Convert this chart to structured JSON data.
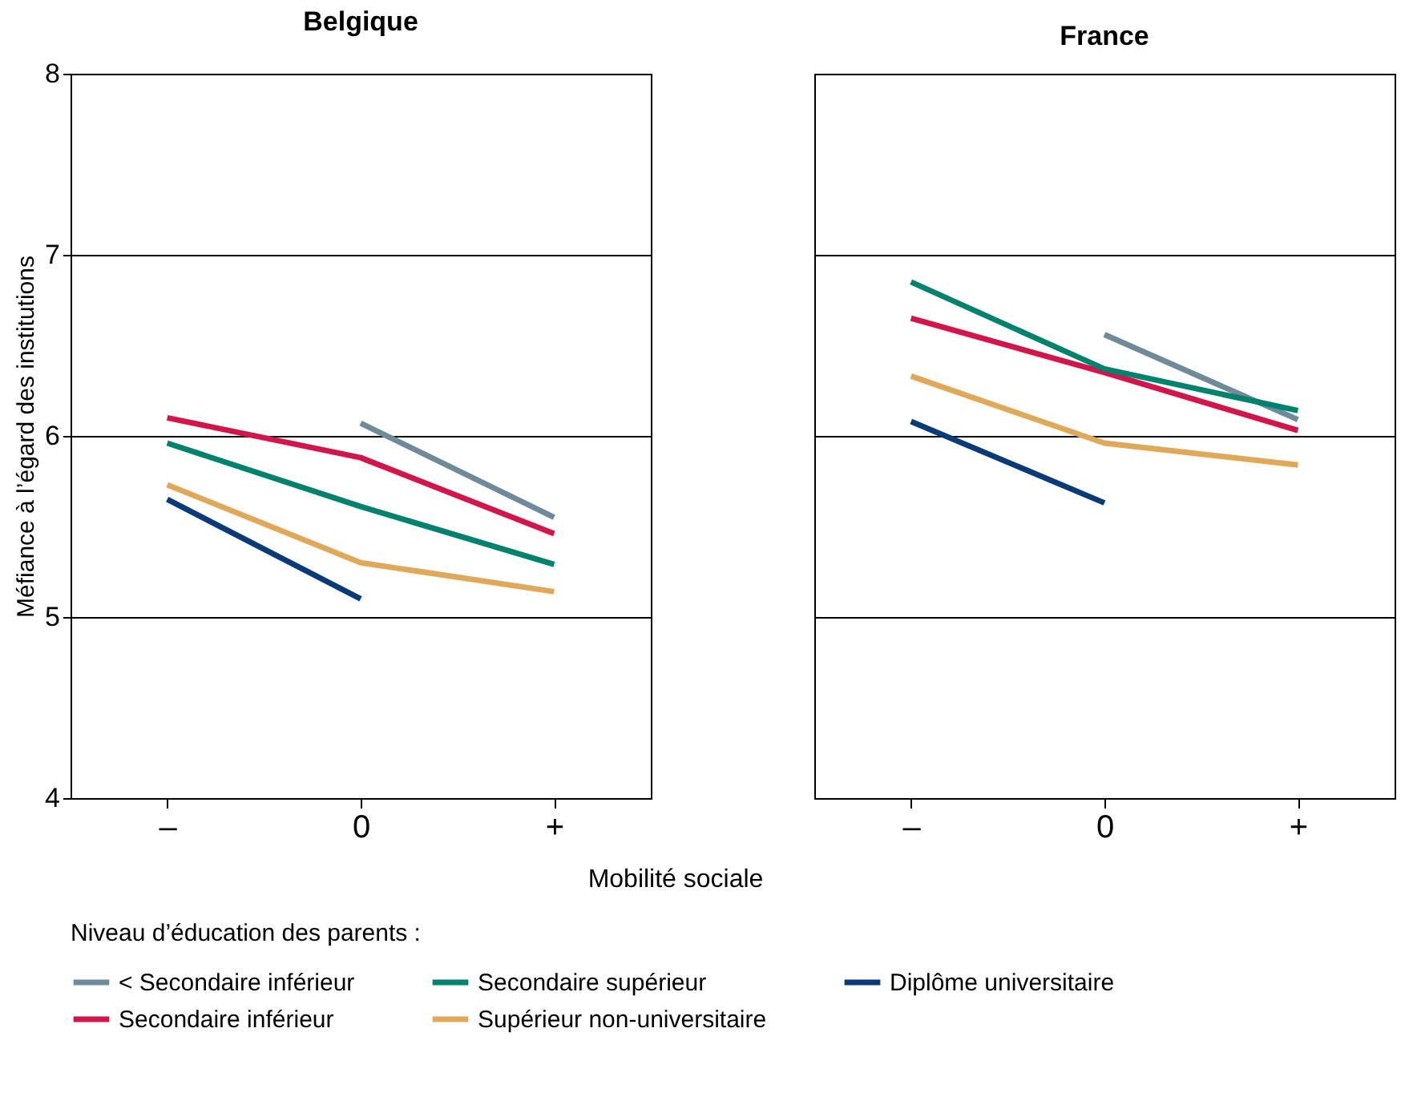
{
  "chart_data": [
    {
      "type": "line",
      "title": "Belgique",
      "xlabel": "Mobilité sociale",
      "ylabel": "Méfiance à l’égard des institutions",
      "legend_title": "Niveau d’éducation des parents :",
      "legend": "bottom",
      "grid": "y",
      "categories": [
        "–",
        "0",
        "+"
      ],
      "ylim": [
        4,
        8
      ],
      "yticks": [
        4,
        5,
        6,
        7,
        8
      ],
      "series": [
        {
          "name": "< Secondaire inférieur",
          "color": "#6f8b9a",
          "values": [
            null,
            6.07,
            5.55
          ]
        },
        {
          "name": "Secondaire inférieur",
          "color": "#d2154a",
          "values": [
            6.1,
            5.88,
            5.46
          ]
        },
        {
          "name": "Secondaire supérieur",
          "color": "#00826f",
          "values": [
            5.96,
            5.61,
            5.29
          ]
        },
        {
          "name": "Supérieur non-universitaire",
          "color": "#e0a95a",
          "values": [
            5.73,
            5.3,
            5.14
          ]
        },
        {
          "name": "Diplôme universitaire",
          "color": "#0a3a78",
          "values": [
            5.65,
            5.1,
            null
          ]
        }
      ]
    },
    {
      "type": "line",
      "title": "France",
      "legend": "bottom",
      "grid": "y",
      "categories": [
        "–",
        "0",
        "+"
      ],
      "ylim": [
        4,
        8
      ],
      "yticks": [
        4,
        5,
        6,
        7,
        8
      ],
      "tick_labels": "x",
      "series": [
        {
          "name": "< Secondaire inférieur",
          "color": "#6f8b9a",
          "values": [
            null,
            6.56,
            6.09
          ]
        },
        {
          "name": "Secondaire inférieur",
          "color": "#d2154a",
          "values": [
            6.65,
            6.35,
            6.03
          ]
        },
        {
          "name": "Secondaire supérieur",
          "color": "#00826f",
          "values": [
            6.85,
            6.37,
            6.14
          ]
        },
        {
          "name": "Supérieur non-universitaire",
          "color": "#e0a95a",
          "values": [
            6.33,
            5.96,
            5.84
          ]
        },
        {
          "name": "Diplôme universitaire",
          "color": "#0a3a78",
          "values": [
            6.08,
            5.63,
            null
          ]
        }
      ]
    }
  ]
}
